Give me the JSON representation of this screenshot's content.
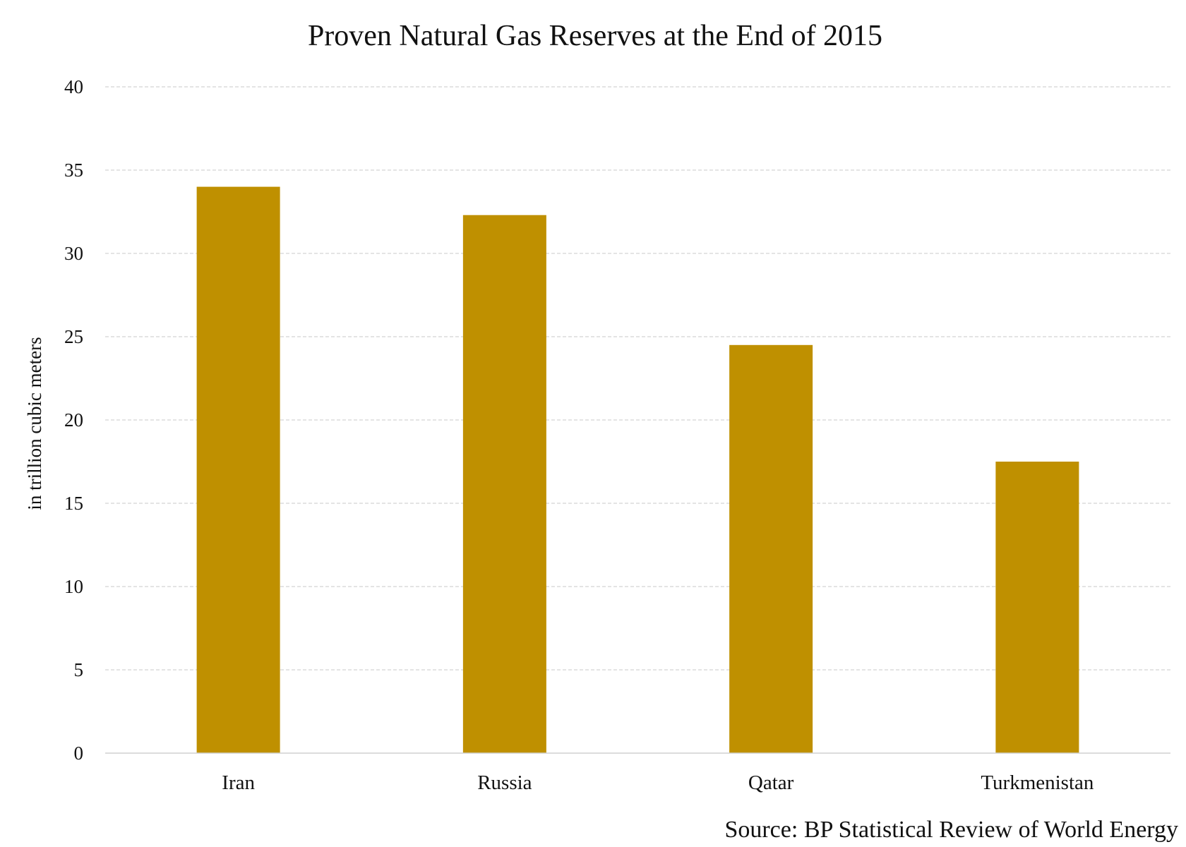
{
  "chart_data": {
    "type": "bar",
    "title": "Proven Natural Gas Reserves at the End of 2015",
    "ylabel": "in trillion cubic meters",
    "xlabel": "",
    "categories": [
      "Iran",
      "Russia",
      "Qatar",
      "Turkmenistan"
    ],
    "values": [
      34.0,
      32.3,
      24.5,
      17.5
    ],
    "ylim": [
      0,
      40
    ],
    "yticks": [
      0,
      5,
      10,
      15,
      20,
      25,
      30,
      35,
      40
    ],
    "grid": true,
    "bar_color": "#BF9000",
    "source": "Source: BP Statistical Review of World Energy"
  }
}
